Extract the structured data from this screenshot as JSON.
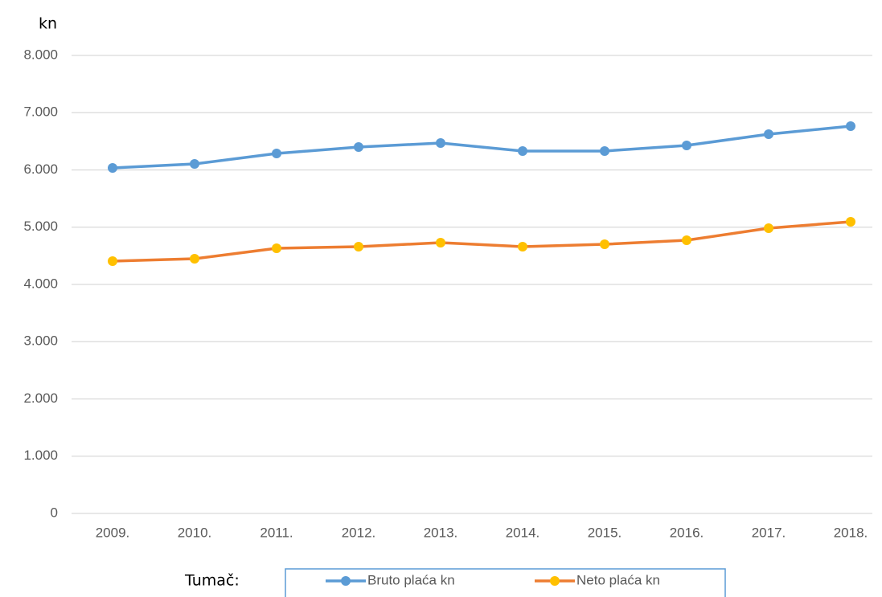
{
  "chart_data": {
    "type": "line",
    "y_label": "kn",
    "legend_title": "Tumač:",
    "categories": [
      "2009.",
      "2010.",
      "2011.",
      "2012.",
      "2013.",
      "2014.",
      "2015.",
      "2016.",
      "2017.",
      "2018."
    ],
    "series": [
      {
        "name": "Bruto plaća kn",
        "color": "#5b9bd5",
        "marker_color": "#5b9bd5",
        "values": [
          6035,
          6105,
          6288,
          6400,
          6470,
          6330,
          6330,
          6428,
          6625,
          6765
        ]
      },
      {
        "name": "Neto plaća kn",
        "color": "#ed7d31",
        "marker_color": "#ffc000",
        "values": [
          4407,
          4449,
          4632,
          4660,
          4730,
          4660,
          4702,
          4772,
          4982,
          5095
        ]
      }
    ],
    "ylim": [
      0,
      8000
    ],
    "yticks": [
      0,
      {
        "value": 1000,
        "label": "1.000"
      },
      {
        "value": 2000,
        "label": "2.000"
      },
      {
        "value": 3000,
        "label": "3.000"
      },
      {
        "value": 4000,
        "label": "4.000"
      },
      {
        "value": 5000,
        "label": "5.000"
      },
      {
        "value": 6000,
        "label": "6.000"
      },
      {
        "value": 7000,
        "label": "7.000"
      },
      {
        "value": 8000,
        "label": "8.000"
      }
    ],
    "grid": true
  }
}
